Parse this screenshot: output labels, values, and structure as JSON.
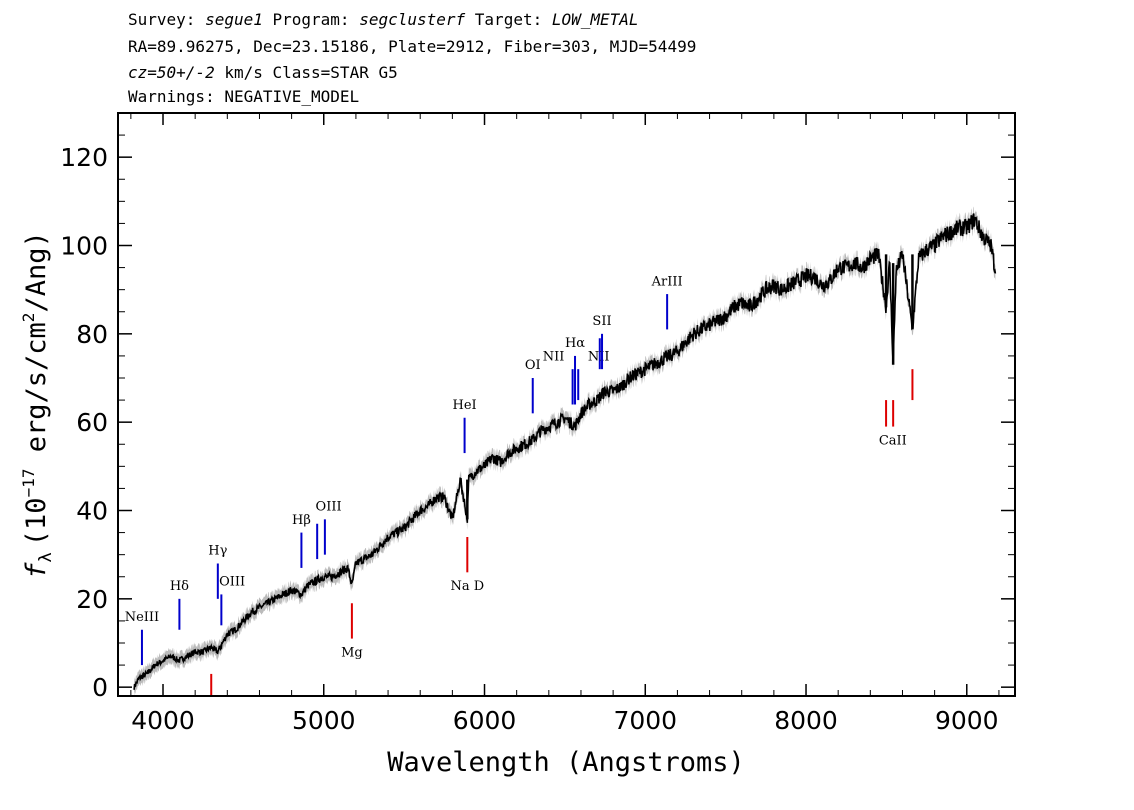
{
  "header": {
    "line1": {
      "survey_label": "Survey: ",
      "survey": "segue1",
      "program_label": " Program: ",
      "program": "segclusterf",
      "target_label": " Target: ",
      "target": "LOW_METAL"
    },
    "line2": "RA=89.96275, Dec=23.15186, Plate=2912, Fiber=303, MJD=54499",
    "line3": {
      "cz": "cz=50+/-2",
      "rest": " km/s Class=STAR G5"
    },
    "line4": "Warnings: NEGATIVE_MODEL"
  },
  "colors": {
    "emission": "#0000cc",
    "absorption": "#dd0000",
    "spectrum": "#000000",
    "error": "#aaaaaa"
  },
  "chart_data": {
    "type": "line",
    "title": "",
    "xlabel": "Wavelength (Angstroms)",
    "ylabel": "f_λ (10^-17 erg/s/cm^2/Ang)",
    "ylabel_parts": {
      "f": "f",
      "sub": "λ",
      "pre": "(10",
      "exp1": "−17",
      "mid": " erg/s/cm",
      "exp2": "2",
      "post": "/Ang)"
    },
    "xlim": [
      3720,
      9300
    ],
    "ylim": [
      -2,
      130
    ],
    "xticks": [
      4000,
      5000,
      6000,
      7000,
      8000,
      9000
    ],
    "xtick_labels": [
      "4000",
      "5000",
      "6000",
      "7000",
      "8000",
      "9000"
    ],
    "yticks": [
      0,
      20,
      40,
      60,
      80,
      100,
      120
    ],
    "ytick_labels": [
      "0",
      "20",
      "40",
      "60",
      "80",
      "100",
      "120"
    ],
    "series": [
      {
        "x": [
          3820,
          3850,
          3900,
          3950,
          4000,
          4050,
          4100,
          4150,
          4200,
          4250,
          4300,
          4340,
          4400,
          4450,
          4500,
          4550,
          4600,
          4650,
          4700,
          4750,
          4800,
          4861,
          4900,
          4950,
          5000,
          5050,
          5100,
          5150,
          5175,
          5200,
          5250,
          5300,
          5350,
          5400,
          5450,
          5500,
          5550,
          5600,
          5650,
          5700,
          5750,
          5800,
          5850,
          5893,
          5900,
          5950,
          6000,
          6050,
          6100,
          6150,
          6200,
          6250,
          6300,
          6350,
          6400,
          6450,
          6500,
          6563,
          6600,
          6650,
          6700,
          6750,
          6800,
          6850,
          6900,
          6950,
          7000,
          7050,
          7100,
          7150,
          7200,
          7250,
          7300,
          7350,
          7400,
          7450,
          7500,
          7550,
          7600,
          7650,
          7700,
          7750,
          7800,
          7850,
          7900,
          7950,
          8000,
          8050,
          8100,
          8150,
          8200,
          8250,
          8300,
          8350,
          8400,
          8450,
          8498,
          8520,
          8542,
          8560,
          8600,
          8662,
          8700,
          8750,
          8800,
          8850,
          8900,
          8950,
          9000,
          9050,
          9100,
          9150,
          9180
        ],
        "y": [
          0,
          2,
          3,
          5,
          6,
          7,
          6,
          7,
          8,
          8,
          9,
          8,
          12,
          13,
          15,
          17,
          18,
          19,
          20,
          21,
          22,
          21,
          23,
          24,
          25,
          25,
          26,
          27,
          23,
          28,
          29,
          30,
          32,
          34,
          35,
          36,
          38,
          40,
          41,
          43,
          43,
          38,
          47,
          38,
          47,
          49,
          50,
          52,
          51,
          53,
          54,
          55,
          56,
          58,
          59,
          60,
          61,
          59,
          62,
          64,
          65,
          67,
          67,
          68,
          70,
          71,
          72,
          73,
          74,
          75,
          76,
          78,
          80,
          81,
          82,
          83,
          84,
          86,
          87,
          86,
          88,
          90,
          91,
          90,
          91,
          92,
          93,
          93,
          91,
          92,
          95,
          95,
          96,
          95,
          97,
          98,
          86,
          96,
          73,
          94,
          98,
          81,
          97,
          99,
          100,
          102,
          103,
          104,
          104,
          106,
          102,
          100,
          94
        ]
      }
    ],
    "lines": [
      {
        "label": "NeIII",
        "x": 3869,
        "kind": "emission",
        "y0": 5,
        "y1": 13,
        "lx": 3869,
        "ly": 15
      },
      {
        "label": "Hδ",
        "x": 4102,
        "kind": "emission",
        "y0": 13,
        "y1": 20,
        "lx": 4102,
        "ly": 22
      },
      {
        "label": "Hγ",
        "x": 4341,
        "kind": "emission",
        "y0": 20,
        "y1": 28,
        "lx": 4341,
        "ly": 30
      },
      {
        "label": "OIII",
        "x": 4363,
        "kind": "emission",
        "y0": 14,
        "y1": 21,
        "lx": 4430,
        "ly": 23
      },
      {
        "label": "Hβ",
        "x": 4861,
        "kind": "emission",
        "y0": 27,
        "y1": 35,
        "lx": 4861,
        "ly": 37
      },
      {
        "label": "OIII",
        "x": 4959,
        "kind": "emission",
        "y0": 29,
        "y1": 37,
        "lx": 5030,
        "ly": 40
      },
      {
        "label": "OIII",
        "x": 5007,
        "kind": "emission",
        "y0": 30,
        "y1": 38
      },
      {
        "label": "HeI",
        "x": 5876,
        "kind": "emission",
        "y0": 53,
        "y1": 61,
        "lx": 5876,
        "ly": 63
      },
      {
        "label": "OI",
        "x": 6300,
        "kind": "emission",
        "y0": 62,
        "y1": 70,
        "lx": 6300,
        "ly": 72
      },
      {
        "label": "NII",
        "x": 6548,
        "kind": "emission",
        "y0": 64,
        "y1": 72,
        "lx": 6430,
        "ly": 74
      },
      {
        "label": "Hα",
        "x": 6563,
        "kind": "emission",
        "y0": 64,
        "y1": 75,
        "lx": 6563,
        "ly": 77
      },
      {
        "label": "NII",
        "x": 6583,
        "kind": "emission",
        "y0": 65,
        "y1": 72
      },
      {
        "label": "NII",
        "x": 6717,
        "kind": "emission",
        "y0": 72,
        "y1": 79,
        "lx": 6710,
        "ly": 74
      },
      {
        "label": "SII",
        "x": 6731,
        "kind": "emission",
        "y0": 72,
        "y1": 80,
        "lx": 6731,
        "ly": 82
      },
      {
        "label": "ArIII",
        "x": 7136,
        "kind": "emission",
        "y0": 81,
        "y1": 89,
        "lx": 7136,
        "ly": 91
      },
      {
        "label": "",
        "x": 4300,
        "kind": "absorption",
        "y0": -2,
        "y1": 3
      },
      {
        "label": "Mg",
        "x": 5175,
        "kind": "absorption",
        "y0": 11,
        "y1": 19,
        "lx": 5175,
        "ly": 7
      },
      {
        "label": "Na D",
        "x": 5893,
        "kind": "absorption",
        "y0": 26,
        "y1": 34,
        "lx": 5893,
        "ly": 22
      },
      {
        "label": "CaII",
        "x": 8498,
        "kind": "absorption",
        "y0": 59,
        "y1": 65,
        "lx": 8540,
        "ly": 55
      },
      {
        "label": "CaII",
        "x": 8542,
        "kind": "absorption",
        "y0": 59,
        "y1": 65
      },
      {
        "label": "CaII",
        "x": 8662,
        "kind": "absorption",
        "y0": 65,
        "y1": 72
      }
    ]
  }
}
